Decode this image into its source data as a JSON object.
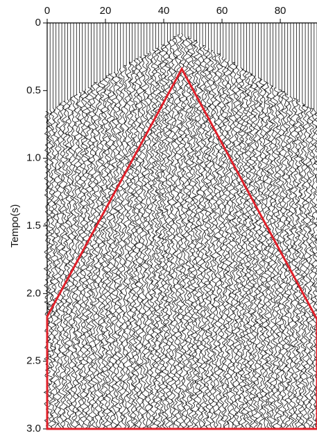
{
  "chart_data": {
    "type": "seismic",
    "y_label": "Tempo(s)",
    "xlim": [
      0,
      92.6
    ],
    "xticks": [
      0,
      20,
      40,
      60,
      80
    ],
    "ylim": [
      0,
      3.0
    ],
    "yticks": [
      0,
      0.5,
      {
        "value": 1,
        "label": "1.0"
      },
      1.5,
      {
        "value": 2,
        "label": "2.0"
      },
      2.5,
      {
        "value": 3,
        "label": "3.0"
      }
    ],
    "polygon": {
      "color": "#e0202a",
      "x": [
        0,
        0,
        46.2,
        92.6,
        92.6
      ],
      "y": [
        3.0,
        2.17,
        0.34,
        2.19,
        3.0
      ]
    }
  }
}
